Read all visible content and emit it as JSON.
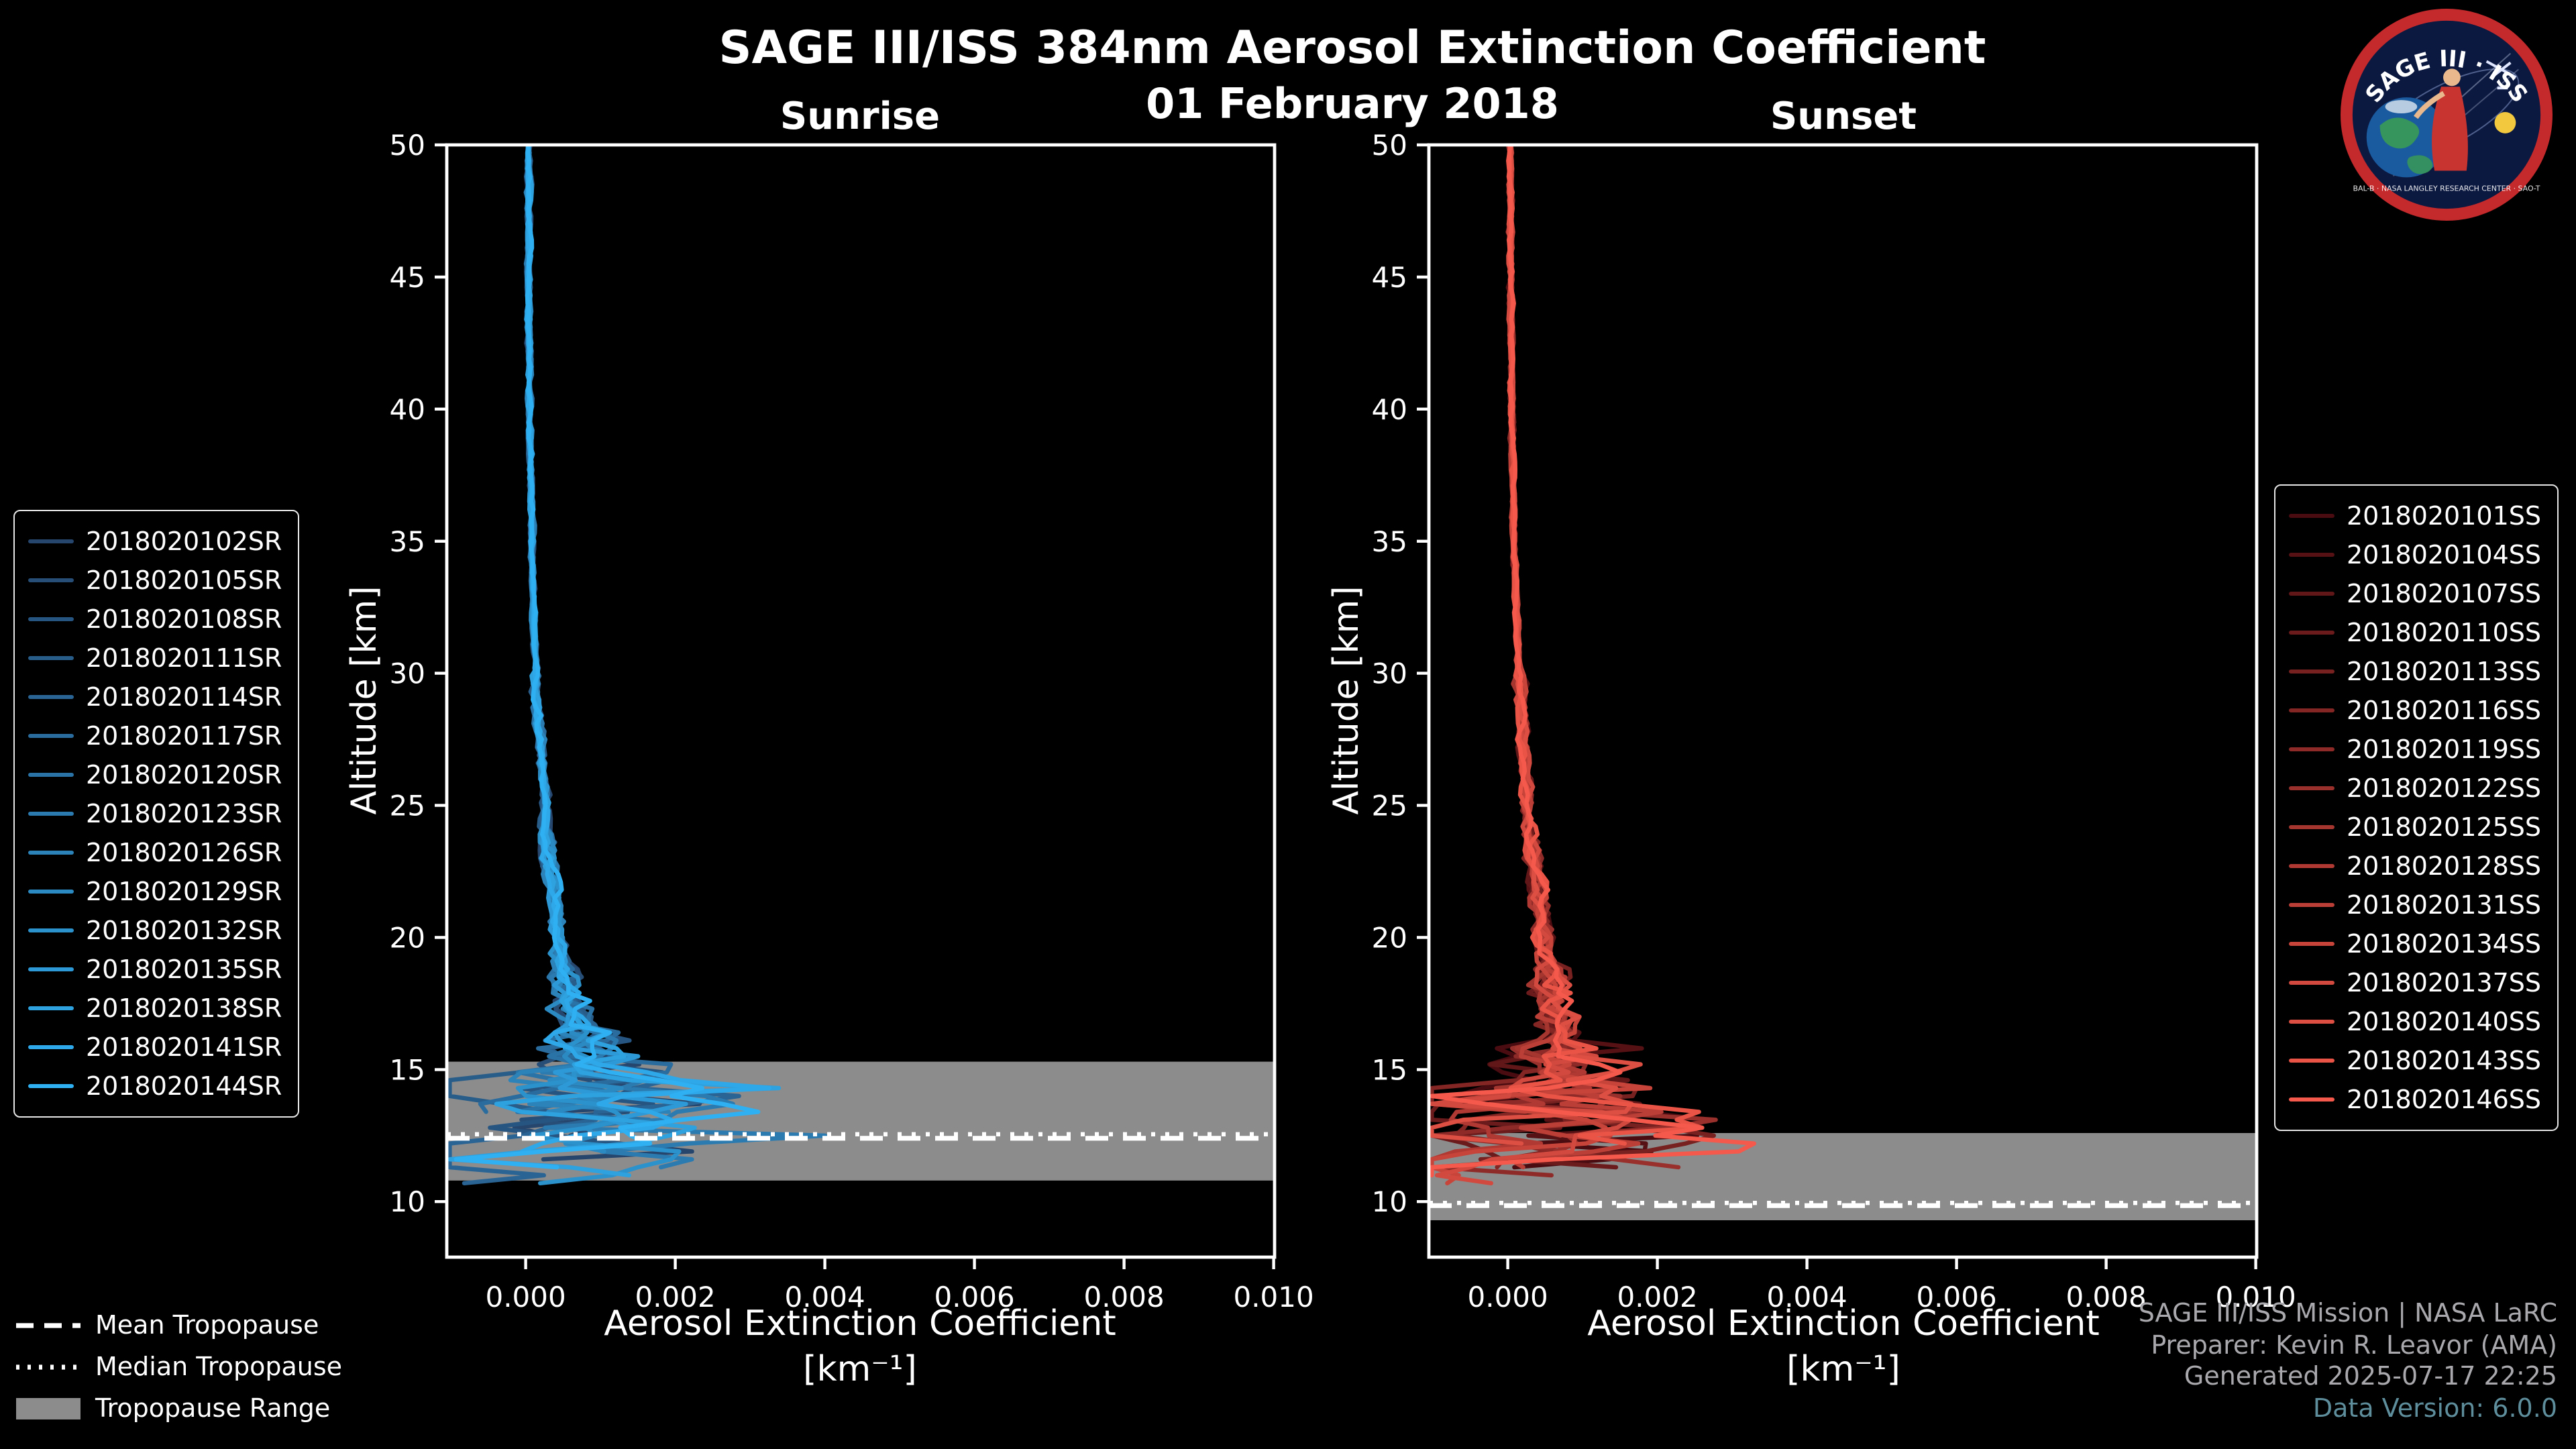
{
  "header": {
    "title": "SAGE III/ISS 384nm Aerosol Extinction Coefficient",
    "date": "01 February 2018"
  },
  "logo": {
    "primary_text": "SAGE III · ISS",
    "ring_text": "BAL-B · NASA LANGLEY RESEARCH CENTER · SAO-T",
    "ring_color": "#c4292c",
    "field_color": "#0b1840"
  },
  "axes": {
    "ylabel": "Altitude [km]",
    "xlabel_line1": "Aerosol Extinction Coefficient",
    "xlabel_line2": "[km⁻¹]",
    "xticks": [
      0,
      0.002,
      0.004,
      0.006,
      0.008,
      0.01
    ],
    "xtick_labels": [
      "0.000",
      "0.002",
      "0.004",
      "0.006",
      "0.008",
      "0.010"
    ],
    "yticks": [
      10,
      15,
      20,
      25,
      30,
      35,
      40,
      45,
      50
    ],
    "xlim": [
      -0.001054,
      0.010013
    ],
    "ylim": [
      7.9,
      50
    ]
  },
  "tropopause_legend": {
    "mean": "Mean Tropopause",
    "median": "Median Tropopause",
    "range": "Tropopause Range",
    "band_color": "#8c8c8c",
    "line_color": "#ffffff"
  },
  "credits": {
    "line1": "SAGE III/ISS Mission | NASA LaRC",
    "line2": "Preparer: Kevin R. Leavor (AMA)",
    "line3": "Generated 2025-07-17 22:25",
    "line4": "Data Version: 6.0.0"
  },
  "chart_data": [
    {
      "type": "line",
      "title": "Sunrise",
      "xlabel": "Aerosol Extinction Coefficient [km⁻¹]",
      "ylabel": "Altitude [km]",
      "xlim": [
        -0.001,
        0.01
      ],
      "ylim": [
        7.9,
        50
      ],
      "legend_position": "left",
      "grid": false,
      "series_names": [
        "2018020102SR",
        "2018020105SR",
        "2018020108SR",
        "2018020111SR",
        "2018020114SR",
        "2018020117SR",
        "2018020120SR",
        "2018020123SR",
        "2018020126SR",
        "2018020129SR",
        "2018020132SR",
        "2018020135SR",
        "2018020138SR",
        "2018020141SR",
        "2018020144SR"
      ],
      "series_color_ramp": [
        "#26466e",
        "#2fb0f2"
      ],
      "mean_profile": {
        "altitude_km": [
          50,
          46,
          42,
          38,
          34,
          30,
          27,
          24,
          21,
          19,
          17.5,
          16.5,
          16,
          15.5,
          15,
          14.5,
          14,
          13.5,
          13,
          12.5,
          12,
          11.5,
          11,
          10.7,
          10.4
        ],
        "extinction": [
          4e-05,
          4.2e-05,
          4.8e-05,
          6e-05,
          9e-05,
          0.00014,
          0.0002,
          0.00028,
          0.0004,
          0.0005,
          0.00062,
          0.00074,
          0.0008,
          0.00072,
          0.00078,
          0.00082,
          0.00088,
          0.0008,
          0.00072,
          0.00085,
          0.00055,
          0.00045,
          0.0003,
          0.00022,
          0.00018
        ]
      },
      "variability": {
        "sigma_bands": [
          {
            "above_alt_km": 30,
            "sigma": 1.5e-05
          },
          {
            "above_alt_km": 24,
            "sigma": 3e-05
          },
          {
            "above_alt_km": 19,
            "sigma": 6e-05
          },
          {
            "above_alt_km": 16.5,
            "sigma": 0.00012
          },
          {
            "above_alt_km": 15,
            "sigma": 0.0003
          },
          {
            "above_alt_km": 12.5,
            "sigma": 0.00085
          },
          {
            "above_alt_km": 0,
            "sigma": 0.0011
          }
        ],
        "spike_alt_range_km": [
          11.5,
          15.5
        ],
        "spike_max_amp": 0.0033,
        "forced_spikes": [
          {
            "series_index": 12,
            "alt_km": 14.3,
            "amp": 0.0033
          },
          {
            "series_index": 7,
            "alt_km": 12.45,
            "amp": 0.0031
          }
        ],
        "termination_alt_range_km": [
          10.4,
          13.2
        ]
      },
      "tropopause": {
        "mean_km": 12.4,
        "median_km": 12.55,
        "range_km": [
          10.8,
          15.3
        ]
      }
    },
    {
      "type": "line",
      "title": "Sunset",
      "xlabel": "Aerosol Extinction Coefficient [km⁻¹]",
      "ylabel": "Altitude [km]",
      "xlim": [
        -0.001,
        0.01
      ],
      "ylim": [
        7.9,
        50
      ],
      "legend_position": "right",
      "grid": false,
      "series_names": [
        "2018020101SS",
        "2018020104SS",
        "2018020107SS",
        "2018020110SS",
        "2018020113SS",
        "2018020116SS",
        "2018020119SS",
        "2018020122SS",
        "2018020125SS",
        "2018020128SS",
        "2018020131SS",
        "2018020134SS",
        "2018020137SS",
        "2018020140SS",
        "2018020143SS",
        "2018020146SS"
      ],
      "series_color_ramp": [
        "#4a0c10",
        "#f4594b"
      ],
      "mean_profile": {
        "altitude_km": [
          50,
          46,
          42,
          38,
          34,
          30,
          27,
          24,
          21,
          19,
          17.5,
          16.5,
          15.5,
          15,
          14.5,
          14,
          13.5,
          13,
          12.5,
          12,
          11.5,
          11,
          10.6
        ],
        "extinction": [
          4e-05,
          4.2e-05,
          5e-05,
          6.5e-05,
          9.5e-05,
          0.00015,
          0.00021,
          0.0003,
          0.00042,
          0.00052,
          0.0006,
          0.00068,
          0.00076,
          0.00082,
          0.00088,
          0.00092,
          0.0009,
          0.00082,
          0.00072,
          0.0006,
          0.00045,
          0.00032,
          0.00025
        ]
      },
      "variability": {
        "sigma_bands": [
          {
            "above_alt_km": 30,
            "sigma": 1.5e-05
          },
          {
            "above_alt_km": 24,
            "sigma": 4e-05
          },
          {
            "above_alt_km": 19,
            "sigma": 7e-05
          },
          {
            "above_alt_km": 16,
            "sigma": 0.00015
          },
          {
            "above_alt_km": 14.5,
            "sigma": 0.0004
          },
          {
            "above_alt_km": 11.5,
            "sigma": 0.001
          },
          {
            "above_alt_km": 0,
            "sigma": 0.0012
          }
        ],
        "spike_alt_range_km": [
          11.5,
          14.5
        ],
        "spike_max_amp": 0.0038,
        "forced_spikes": [
          {
            "series_index": 15,
            "alt_km": 12.05,
            "amp": 0.0036
          },
          {
            "series_index": 13,
            "alt_km": 13.6,
            "amp": 0.0022
          }
        ],
        "termination_alt_range_km": [
          10.4,
          12.6
        ]
      },
      "tropopause": {
        "mean_km": 9.85,
        "median_km": 9.95,
        "range_km": [
          9.3,
          12.6
        ]
      }
    }
  ]
}
